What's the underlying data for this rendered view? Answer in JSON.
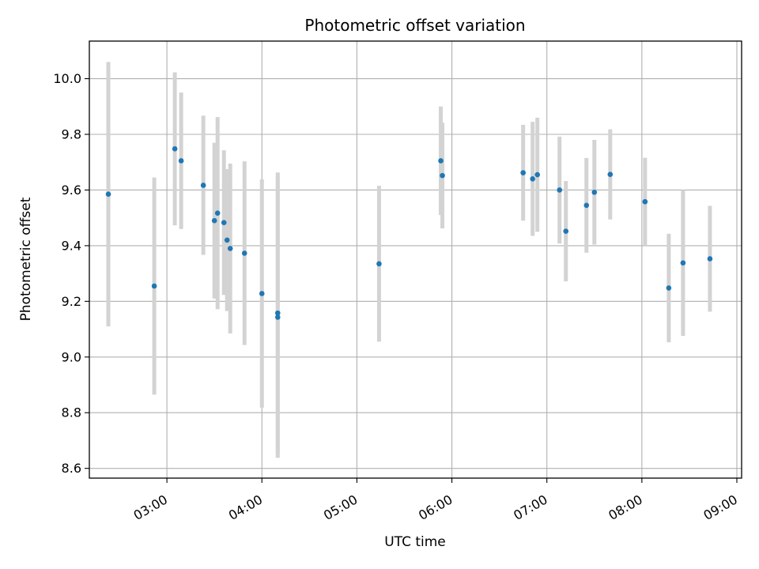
{
  "chart_data": {
    "type": "scatter",
    "title": "Photometric offset variation",
    "xlabel": "UTC time",
    "ylabel": "Photometric offset",
    "x_axis_type": "time",
    "xlim": [
      "02:11",
      "09:03"
    ],
    "ylim": [
      8.565,
      10.135
    ],
    "xticks": [
      "03:00",
      "04:00",
      "05:00",
      "06:00",
      "07:00",
      "08:00",
      "09:00"
    ],
    "yticks": [
      8.6,
      8.8,
      9.0,
      9.2,
      9.4,
      9.6,
      9.8,
      10.0
    ],
    "ytick_labels": [
      "8.6",
      "8.8",
      "9.0",
      "9.2",
      "9.4",
      "9.6",
      "9.8",
      "10.0"
    ],
    "grid": true,
    "colors": {
      "point": "#1f77b4",
      "errorbar": "#d3d3d3",
      "grid": "#b0b0b0"
    },
    "points": [
      {
        "x": "02:23",
        "y": 9.585,
        "err": 0.475
      },
      {
        "x": "02:52",
        "y": 9.255,
        "err": 0.39
      },
      {
        "x": "03:05",
        "y": 9.748,
        "err": 0.275
      },
      {
        "x": "03:09",
        "y": 9.705,
        "err": 0.245
      },
      {
        "x": "03:23",
        "y": 9.617,
        "err": 0.25
      },
      {
        "x": "03:30",
        "y": 9.49,
        "err": 0.28
      },
      {
        "x": "03:32",
        "y": 9.517,
        "err": 0.345
      },
      {
        "x": "03:36",
        "y": 9.483,
        "err": 0.26
      },
      {
        "x": "03:38",
        "y": 9.42,
        "err": 0.255
      },
      {
        "x": "03:40",
        "y": 9.39,
        "err": 0.305
      },
      {
        "x": "03:49",
        "y": 9.373,
        "err": 0.33
      },
      {
        "x": "04:00",
        "y": 9.228,
        "err": 0.41
      },
      {
        "x": "04:10",
        "y": 9.158,
        "err": 0.505
      },
      {
        "x": "04:10",
        "y": 9.143,
        "err": 0.505
      },
      {
        "x": "05:14",
        "y": 9.335,
        "err": 0.28
      },
      {
        "x": "05:53",
        "y": 9.705,
        "err": 0.195
      },
      {
        "x": "05:54",
        "y": 9.652,
        "err": 0.19
      },
      {
        "x": "06:45",
        "y": 9.662,
        "err": 0.172
      },
      {
        "x": "06:51",
        "y": 9.64,
        "err": 0.205
      },
      {
        "x": "06:54",
        "y": 9.655,
        "err": 0.205
      },
      {
        "x": "07:08",
        "y": 9.6,
        "err": 0.192
      },
      {
        "x": "07:12",
        "y": 9.452,
        "err": 0.18
      },
      {
        "x": "07:25",
        "y": 9.545,
        "err": 0.17
      },
      {
        "x": "07:30",
        "y": 9.592,
        "err": 0.188
      },
      {
        "x": "07:40",
        "y": 9.656,
        "err": 0.162
      },
      {
        "x": "08:02",
        "y": 9.558,
        "err": 0.158
      },
      {
        "x": "08:17",
        "y": 9.248,
        "err": 0.195
      },
      {
        "x": "08:26",
        "y": 9.338,
        "err": 0.262
      },
      {
        "x": "08:43",
        "y": 9.353,
        "err": 0.19
      }
    ]
  }
}
